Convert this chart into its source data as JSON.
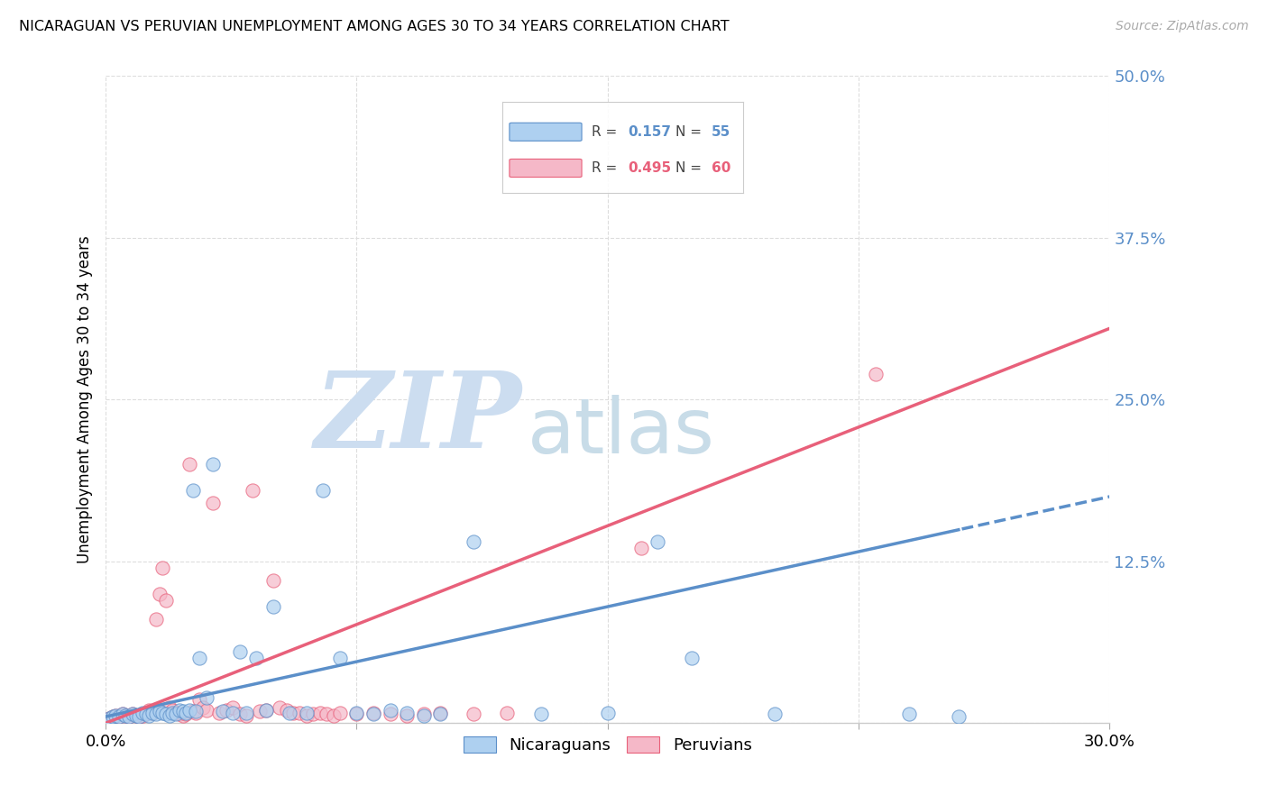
{
  "title": "NICARAGUAN VS PERUVIAN UNEMPLOYMENT AMONG AGES 30 TO 34 YEARS CORRELATION CHART",
  "source": "Source: ZipAtlas.com",
  "ylabel": "Unemployment Among Ages 30 to 34 years",
  "xmin": 0.0,
  "xmax": 0.3,
  "ymin": 0.0,
  "ymax": 0.5,
  "yticks": [
    0.0,
    0.125,
    0.25,
    0.375,
    0.5
  ],
  "ytick_labels": [
    "",
    "12.5%",
    "25.0%",
    "37.5%",
    "50.0%"
  ],
  "blue_R": 0.157,
  "blue_N": 55,
  "pink_R": 0.495,
  "pink_N": 60,
  "blue_color": "#aed0f0",
  "pink_color": "#f5b8c8",
  "blue_line_color": "#5b8fc9",
  "pink_line_color": "#e8607a",
  "watermark_zip": "ZIP",
  "watermark_atlas": "atlas",
  "watermark_color_zip": "#ccddf0",
  "watermark_color_atlas": "#c8dce8",
  "legend_label_blue": "Nicaraguans",
  "legend_label_pink": "Peruvians",
  "blue_scatter_x": [
    0.001,
    0.002,
    0.003,
    0.004,
    0.005,
    0.006,
    0.007,
    0.008,
    0.009,
    0.01,
    0.011,
    0.012,
    0.013,
    0.014,
    0.015,
    0.016,
    0.017,
    0.018,
    0.019,
    0.02,
    0.021,
    0.022,
    0.023,
    0.024,
    0.025,
    0.026,
    0.027,
    0.028,
    0.03,
    0.032,
    0.035,
    0.038,
    0.04,
    0.042,
    0.045,
    0.048,
    0.05,
    0.055,
    0.06,
    0.065,
    0.07,
    0.075,
    0.08,
    0.085,
    0.09,
    0.095,
    0.1,
    0.11,
    0.13,
    0.15,
    0.165,
    0.175,
    0.2,
    0.24,
    0.255
  ],
  "blue_scatter_y": [
    0.004,
    0.005,
    0.006,
    0.005,
    0.007,
    0.006,
    0.005,
    0.007,
    0.006,
    0.005,
    0.008,
    0.007,
    0.006,
    0.008,
    0.007,
    0.009,
    0.008,
    0.007,
    0.006,
    0.008,
    0.007,
    0.01,
    0.009,
    0.008,
    0.01,
    0.18,
    0.009,
    0.05,
    0.02,
    0.2,
    0.009,
    0.008,
    0.055,
    0.008,
    0.05,
    0.01,
    0.09,
    0.008,
    0.008,
    0.18,
    0.05,
    0.008,
    0.007,
    0.01,
    0.008,
    0.006,
    0.007,
    0.14,
    0.007,
    0.008,
    0.14,
    0.05,
    0.007,
    0.007,
    0.005
  ],
  "pink_scatter_x": [
    0.001,
    0.002,
    0.003,
    0.004,
    0.005,
    0.006,
    0.007,
    0.008,
    0.009,
    0.01,
    0.011,
    0.012,
    0.013,
    0.014,
    0.015,
    0.016,
    0.017,
    0.018,
    0.019,
    0.02,
    0.021,
    0.022,
    0.023,
    0.024,
    0.025,
    0.026,
    0.027,
    0.028,
    0.029,
    0.03,
    0.032,
    0.034,
    0.036,
    0.038,
    0.04,
    0.042,
    0.044,
    0.046,
    0.048,
    0.05,
    0.052,
    0.054,
    0.056,
    0.058,
    0.06,
    0.062,
    0.064,
    0.066,
    0.068,
    0.07,
    0.075,
    0.08,
    0.085,
    0.09,
    0.095,
    0.1,
    0.11,
    0.12,
    0.16,
    0.23
  ],
  "pink_scatter_y": [
    0.004,
    0.005,
    0.006,
    0.005,
    0.007,
    0.006,
    0.005,
    0.007,
    0.006,
    0.005,
    0.006,
    0.008,
    0.01,
    0.008,
    0.08,
    0.1,
    0.12,
    0.095,
    0.012,
    0.01,
    0.008,
    0.007,
    0.006,
    0.007,
    0.2,
    0.009,
    0.008,
    0.018,
    0.012,
    0.01,
    0.17,
    0.008,
    0.01,
    0.012,
    0.007,
    0.006,
    0.18,
    0.009,
    0.01,
    0.11,
    0.012,
    0.01,
    0.008,
    0.008,
    0.006,
    0.007,
    0.008,
    0.007,
    0.006,
    0.008,
    0.007,
    0.008,
    0.007,
    0.006,
    0.007,
    0.008,
    0.007,
    0.008,
    0.135,
    0.27
  ],
  "blue_trend_x0": 0.0,
  "blue_trend_y0": 0.005,
  "blue_trend_x1": 0.3,
  "blue_trend_y1": 0.175,
  "pink_trend_x0": 0.0,
  "pink_trend_y0": 0.0,
  "pink_trend_x1": 0.3,
  "pink_trend_y1": 0.305
}
